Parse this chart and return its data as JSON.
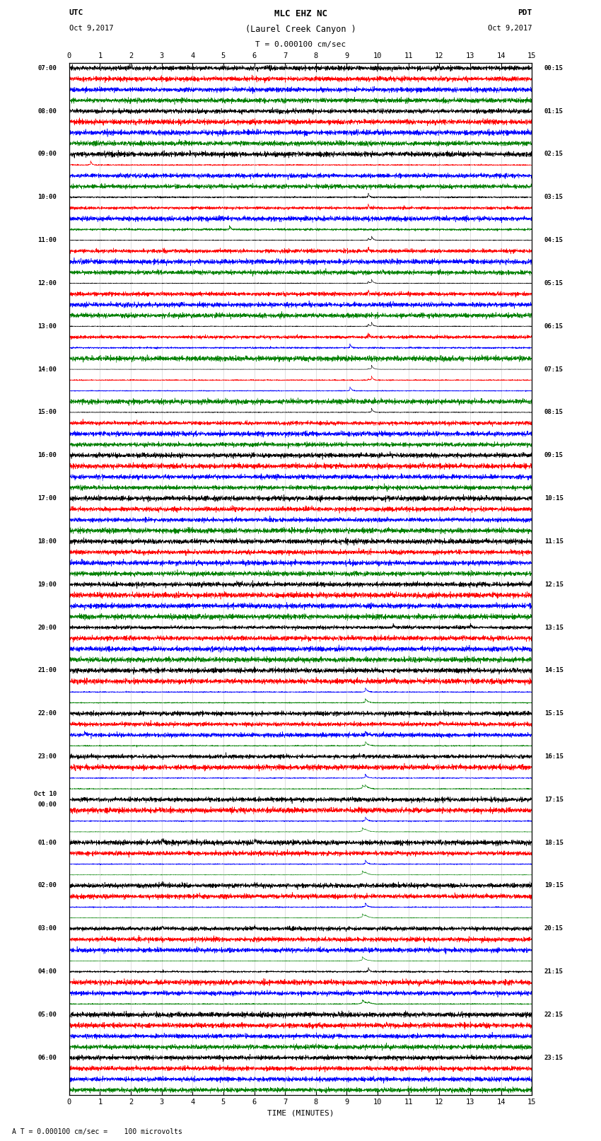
{
  "title_line1": "MLC EHZ NC",
  "title_line2": "(Laurel Creek Canyon )",
  "title_line3": "T = 0.000100 cm/sec",
  "utc_label": "UTC",
  "pdt_label": "PDT",
  "date_left": "Oct 9,2017",
  "date_right": "Oct 9,2017",
  "xlabel": "TIME (MINUTES)",
  "footnote": "A T = 0.000100 cm/sec =    100 microvolts",
  "xlim": [
    0,
    15
  ],
  "trace_colors": [
    "black",
    "red",
    "blue",
    "green"
  ],
  "background_color": "white",
  "utc_times_left": [
    "07:00",
    "08:00",
    "09:00",
    "10:00",
    "11:00",
    "12:00",
    "13:00",
    "14:00",
    "15:00",
    "16:00",
    "17:00",
    "18:00",
    "19:00",
    "20:00",
    "21:00",
    "22:00",
    "23:00",
    "Oct 10\n00:00",
    "01:00",
    "02:00",
    "03:00",
    "04:00",
    "05:00",
    "06:00"
  ],
  "pdt_times_right": [
    "00:15",
    "01:15",
    "02:15",
    "03:15",
    "04:15",
    "05:15",
    "06:15",
    "07:15",
    "08:15",
    "09:15",
    "10:15",
    "11:15",
    "12:15",
    "13:15",
    "14:15",
    "15:15",
    "16:15",
    "17:15",
    "18:15",
    "19:15",
    "20:15",
    "21:15",
    "22:15",
    "23:15"
  ],
  "n_hour_groups": 24,
  "traces_per_hour": 4,
  "minutes": 15,
  "samples": 3000,
  "noise_seed": 12345
}
